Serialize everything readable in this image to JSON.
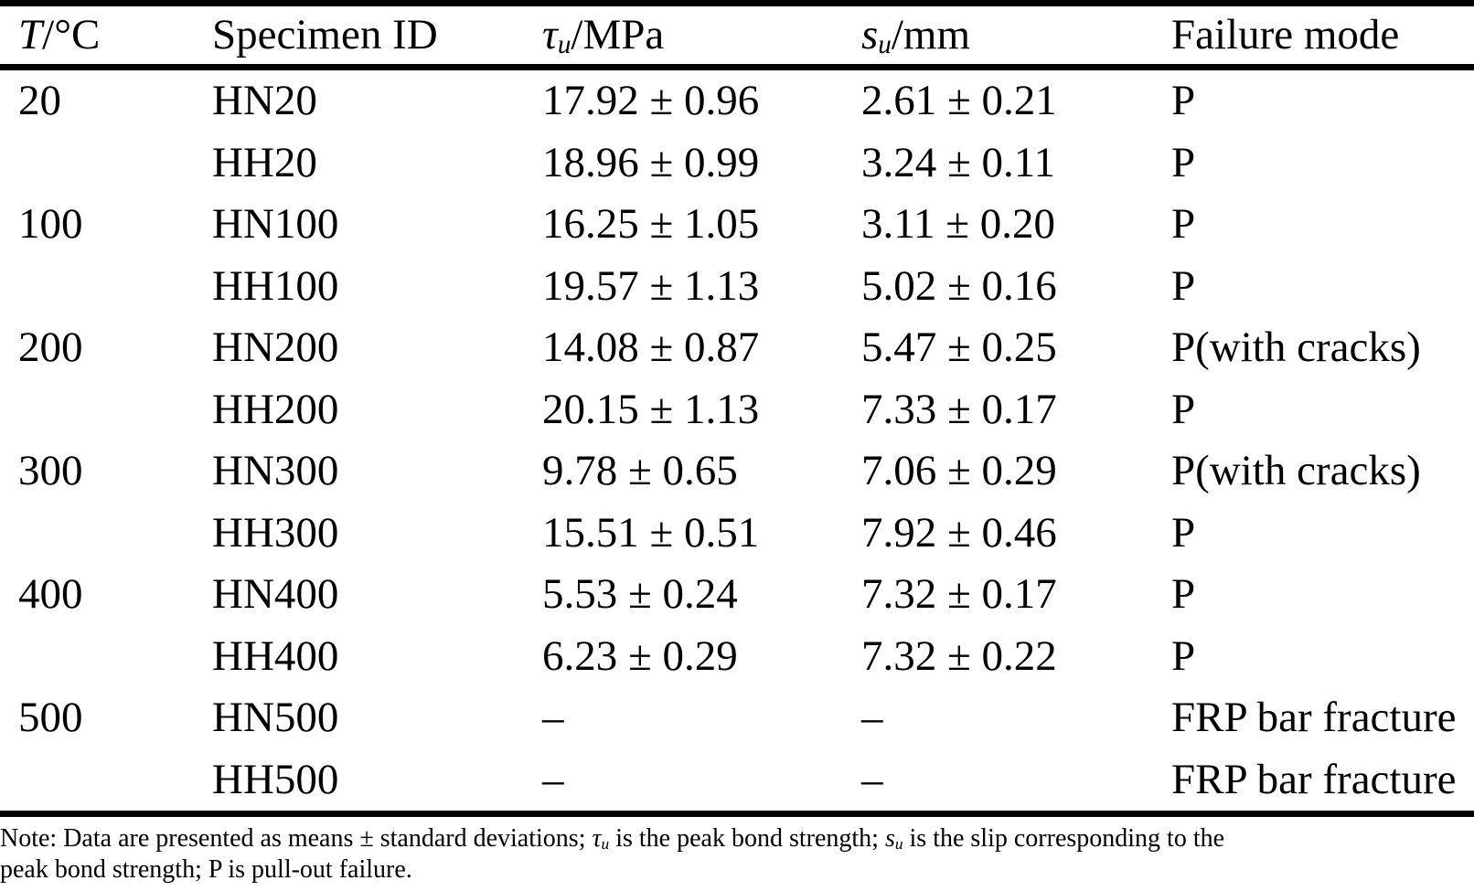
{
  "colors": {
    "text": "#000000",
    "background": "#ffffff",
    "rule": "#000000"
  },
  "table": {
    "header": {
      "temperature": {
        "symbol": "T",
        "suffix": "/°C"
      },
      "specimen": {
        "label": "Specimen ID"
      },
      "bond_strength": {
        "symbol": "τ",
        "sub": "u",
        "suffix": "/MPa"
      },
      "slip": {
        "symbol": "s",
        "sub": "u",
        "suffix": "/mm"
      },
      "failure_mode": {
        "label": "Failure mode"
      }
    },
    "rows": [
      {
        "temp": "20",
        "id": "HN20",
        "tau": "17.92 ± 0.96",
        "slip": "2.61 ± 0.21",
        "mode": "P"
      },
      {
        "temp": "",
        "id": "HH20",
        "tau": "18.96 ± 0.99",
        "slip": "3.24 ± 0.11",
        "mode": "P"
      },
      {
        "temp": "100",
        "id": "HN100",
        "tau": "16.25 ± 1.05",
        "slip": "3.11 ± 0.20",
        "mode": "P"
      },
      {
        "temp": "",
        "id": "HH100",
        "tau": "19.57 ± 1.13",
        "slip": "5.02 ± 0.16",
        "mode": "P"
      },
      {
        "temp": "200",
        "id": "HN200",
        "tau": "14.08 ± 0.87",
        "slip": "5.47 ± 0.25",
        "mode": "P(with cracks)"
      },
      {
        "temp": "",
        "id": "HH200",
        "tau": "20.15 ± 1.13",
        "slip": "7.33 ± 0.17",
        "mode": "P"
      },
      {
        "temp": "300",
        "id": "HN300",
        "tau": "9.78 ± 0.65",
        "slip": "7.06 ± 0.29",
        "mode": "P(with cracks)"
      },
      {
        "temp": "",
        "id": "HH300",
        "tau": "15.51 ± 0.51",
        "slip": "7.92 ± 0.46",
        "mode": "P"
      },
      {
        "temp": "400",
        "id": "HN400",
        "tau": "5.53 ± 0.24",
        "slip": "7.32 ± 0.17",
        "mode": "P"
      },
      {
        "temp": "",
        "id": "HH400",
        "tau": "6.23 ± 0.29",
        "slip": "7.32 ± 0.22",
        "mode": "P"
      },
      {
        "temp": "500",
        "id": "HN500",
        "tau": "–",
        "slip": "–",
        "mode": "FRP bar fracture"
      },
      {
        "temp": "",
        "id": "HH500",
        "tau": "–",
        "slip": "–",
        "mode": "FRP bar fracture"
      }
    ]
  },
  "note": {
    "line1_prefix": "Note: Data are presented as means ± standard deviations; ",
    "tau_symbol": "τ",
    "tau_sub": "u",
    "line1_mid": " is the peak bond strength; ",
    "s_symbol": "s",
    "s_sub": "u",
    "line1_suffix": " is the slip corresponding to the",
    "line2": "peak bond strength; P is pull-out failure."
  }
}
